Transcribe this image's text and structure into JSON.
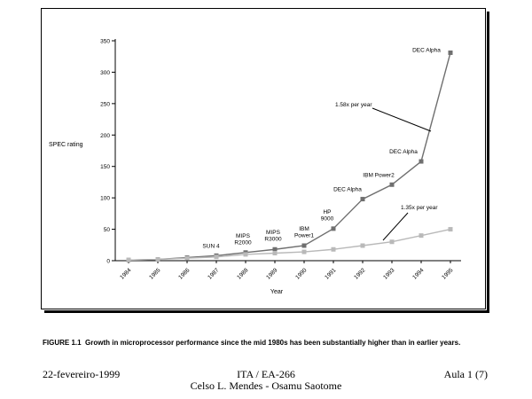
{
  "chart_data": {
    "type": "line",
    "ylabel": "SPEC rating",
    "xlabel": "Year",
    "x": [
      "1984",
      "1985",
      "1986",
      "1987",
      "1988",
      "1989",
      "1990",
      "1991",
      "1992",
      "1993",
      "1994",
      "1995"
    ],
    "ylim": [
      0,
      350
    ],
    "yticks": [
      0,
      50,
      100,
      150,
      200,
      250,
      300,
      350
    ],
    "grid": false,
    "series": [
      {
        "values": [
          1,
          2,
          5,
          8,
          13,
          18,
          24,
          51,
          98,
          121,
          158,
          331
        ],
        "color": "#6f6f6f"
      },
      {
        "values": [
          1,
          2,
          4,
          6,
          10,
          12,
          14,
          18,
          24,
          30,
          40,
          50
        ],
        "color": "#b9b9b9"
      }
    ],
    "point_labels": [
      {
        "series": 0,
        "index": 3,
        "lines": [
          "SUN 4"
        ]
      },
      {
        "series": 0,
        "index": 4,
        "lines": [
          "MIPS",
          "R2000"
        ]
      },
      {
        "series": 0,
        "index": 5,
        "lines": [
          "MIPS",
          "R3000"
        ]
      },
      {
        "series": 0,
        "index": 6,
        "lines": [
          "IBM",
          "Power1"
        ]
      },
      {
        "series": 0,
        "index": 7,
        "lines": [
          "HP",
          "9000"
        ]
      },
      {
        "series": 0,
        "index": 8,
        "lines": [
          "DEC Alpha"
        ]
      },
      {
        "series": 0,
        "index": 9,
        "lines": [
          "IBM Power2"
        ]
      },
      {
        "series": 0,
        "index": 10,
        "lines": [
          "DEC Alpha"
        ]
      },
      {
        "series": 0,
        "index": 11,
        "lines": [
          "DEC Alpha"
        ]
      }
    ],
    "annotations": [
      {
        "text": "1.58x per year",
        "series": 0
      },
      {
        "text": "1.35x per year",
        "series": 1
      }
    ]
  },
  "caption": {
    "label": "FIGURE 1.1",
    "text": "Growth in microprocessor performance since the mid 1980s has been substantially higher than in earlier years."
  },
  "footer": {
    "date": "22-fevereiro-1999",
    "course": "ITA / EA-266",
    "authors": "Celso L. Mendes - Osamu Saotome",
    "lecture": "Aula 1 (7)"
  }
}
